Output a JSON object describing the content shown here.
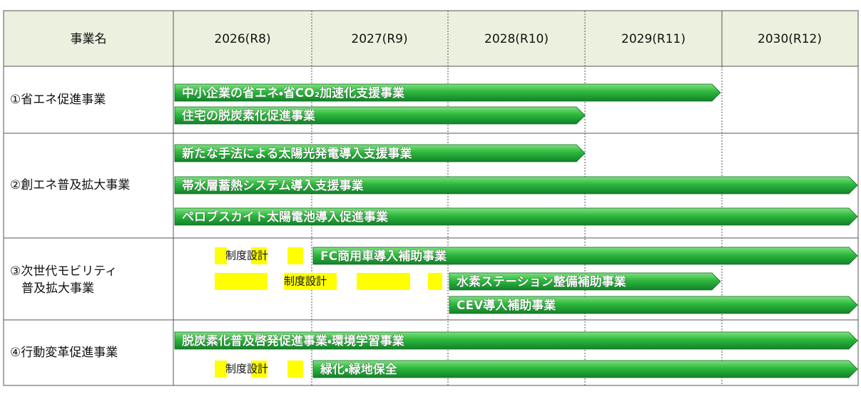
{
  "header": {
    "columns": [
      "事業名",
      "2026(R8)",
      "2027(R9)",
      "2028(R10)",
      "2029(R11)",
      "2030(R12)"
    ]
  },
  "rows": [
    {
      "label_lines": [
        "①省エネ促進事業"
      ],
      "bars": [
        "中小企業の省エネ・省CO₂加速化支援事業",
        "住宅の脱炭素化促進事業"
      ]
    },
    {
      "label_lines": [
        "②創エネ普及拡大事業"
      ],
      "bars": [
        "新たな手法による太陽光発電導入支援事業",
        "帯水層蓄熱システム導入支援事業",
        "ペロブスカイト太陽電池導入促進事業"
      ]
    },
    {
      "label_lines": [
        "③次世代モビリティ",
        "普及拡大事業"
      ],
      "phases": [
        "制度設計",
        "制度設計"
      ],
      "bars": [
        "FC商用車導入補助事業",
        "水素ステーション整備補助事業",
        "CEV導入補助事業"
      ]
    },
    {
      "label_lines": [
        "④行動変革促進事業"
      ],
      "phases": [
        "制度設計"
      ],
      "bars": [
        "脱炭素化普及啓発促進事業・環境学習事業",
        "緑化・緑地保全"
      ]
    }
  ]
}
